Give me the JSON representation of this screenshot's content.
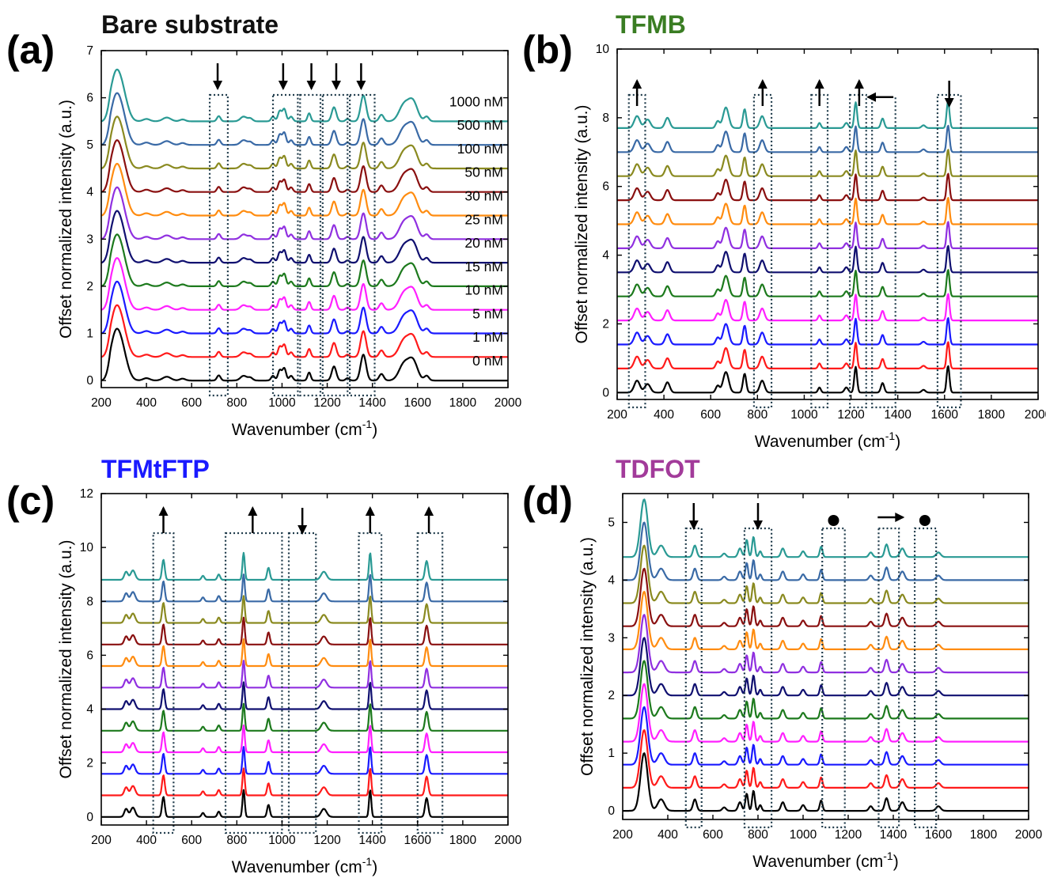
{
  "figure": {
    "labels": {
      "a": "(a)",
      "b": "(b)",
      "c": "(c)",
      "d": "(d)"
    },
    "titles": {
      "a": "Bare substrate",
      "b": "TFMB",
      "c": "TFMtFTP",
      "d": "TDFOT"
    },
    "title_colors": {
      "a": "#111111",
      "b": "#3a7d23",
      "c": "#1a1aff",
      "d": "#a23b9a"
    },
    "concentrations": [
      "1000 nM",
      "500 nM",
      "100 nM",
      "50 nM",
      "30 nM",
      "25 nM",
      "20 nM",
      "15 nM",
      "10 nM",
      "5 nM",
      "1 nM",
      "0 nM"
    ],
    "series_colors": [
      "#2a9a94",
      "#3a6aa6",
      "#8a8a20",
      "#8a1010",
      "#ff8c10",
      "#9030e0",
      "#101070",
      "#1d7a1d",
      "#ff20ff",
      "#1a1aff",
      "#ff1a1a",
      "#000000"
    ]
  },
  "chart_data": [
    {
      "panel": "a",
      "type": "line",
      "title": "Bare substrate",
      "xlabel": "Wavenumber (cm",
      "xlabel_sup": "-1",
      "xlabel_end": ")",
      "ylabel": "Offset normalized intensity (a.u.)",
      "xlim": [
        200,
        2000
      ],
      "ylim": [
        -0.15,
        7
      ],
      "xticks": [
        200,
        400,
        600,
        800,
        1000,
        1200,
        1400,
        1600,
        1800,
        2000
      ],
      "yticks": [
        0,
        1,
        2,
        3,
        4,
        5,
        6,
        7
      ],
      "legend": "in-plot concentration labels",
      "series_names": [
        "1000 nM",
        "500 nM",
        "100 nM",
        "50 nM",
        "30 nM",
        "25 nM",
        "20 nM",
        "15 nM",
        "10 nM",
        "5 nM",
        "1 nM",
        "0 nM"
      ],
      "offset_step": 0.5,
      "peaks": [
        [
          265,
          1.0,
          26
        ],
        [
          300,
          0.3,
          22
        ],
        [
          400,
          0.05,
          15
        ],
        [
          490,
          0.08,
          18
        ],
        [
          560,
          0.04,
          12
        ],
        [
          720,
          0.11,
          8
        ],
        [
          830,
          0.1,
          14
        ],
        [
          860,
          0.06,
          10
        ],
        [
          960,
          0.1,
          8
        ],
        [
          990,
          0.22,
          8
        ],
        [
          1010,
          0.26,
          8
        ],
        [
          1040,
          0.1,
          8
        ],
        [
          1120,
          0.17,
          7
        ],
        [
          1230,
          0.3,
          10
        ],
        [
          1290,
          0.05,
          8
        ],
        [
          1360,
          0.55,
          12
        ],
        [
          1440,
          0.14,
          10
        ],
        [
          1540,
          0.35,
          22
        ],
        [
          1580,
          0.4,
          20
        ],
        [
          1640,
          0.1,
          10
        ]
      ],
      "arrows": [
        "down",
        "down",
        "down",
        "down",
        "down"
      ],
      "boxes": [
        [
          680,
          760
        ],
        [
          960,
          1070
        ],
        [
          1080,
          1170
        ],
        [
          1180,
          1290
        ],
        [
          1300,
          1410
        ]
      ],
      "arrow_x": [
        715,
        1005,
        1130,
        1240,
        1350
      ]
    },
    {
      "panel": "b",
      "type": "line",
      "title": "TFMB",
      "xlabel": "Wavenumber (cm",
      "xlabel_sup": "-1",
      "xlabel_end": ")",
      "ylabel": "Offset normalized intensity (a.u.)",
      "xlim": [
        200,
        2000
      ],
      "ylim": [
        -0.2,
        10
      ],
      "xticks": [
        200,
        400,
        600,
        800,
        1000,
        1200,
        1400,
        1600,
        1800,
        2000
      ],
      "yticks": [
        0,
        2,
        4,
        6,
        8,
        10
      ],
      "offset_step": 0.7,
      "peaks": [
        [
          285,
          0.35,
          12
        ],
        [
          330,
          0.25,
          12
        ],
        [
          415,
          0.3,
          10
        ],
        [
          630,
          0.2,
          8
        ],
        [
          665,
          0.6,
          12
        ],
        [
          745,
          0.55,
          7
        ],
        [
          820,
          0.35,
          10
        ],
        [
          1065,
          0.15,
          6
        ],
        [
          1180,
          0.15,
          8
        ],
        [
          1220,
          0.75,
          6
        ],
        [
          1335,
          0.28,
          7
        ],
        [
          1510,
          0.08,
          8
        ],
        [
          1615,
          0.78,
          6
        ]
      ],
      "arrows": [
        "up",
        "up",
        "up",
        "up",
        "left",
        "down"
      ],
      "boxes": [
        [
          250,
          320
        ],
        [
          785,
          860
        ],
        [
          1030,
          1100
        ],
        [
          1195,
          1265
        ],
        [
          1290,
          1390
        ],
        [
          1570,
          1670
        ]
      ],
      "arrow_x": [
        285,
        822,
        1065,
        1235,
        1320,
        1620
      ]
    },
    {
      "panel": "c",
      "type": "line",
      "title": "TFMtFTP",
      "xlabel": "Wavenumber (cm",
      "xlabel_sup": "-1",
      "xlabel_end": ")",
      "ylabel": "Offset normalized intensity (a.u.)",
      "xlim": [
        200,
        2000
      ],
      "ylim": [
        -0.3,
        12
      ],
      "xticks": [
        200,
        400,
        600,
        800,
        1000,
        1200,
        1400,
        1600,
        1800,
        2000
      ],
      "yticks": [
        0,
        2,
        4,
        6,
        8,
        10,
        12
      ],
      "offset_step": 0.8,
      "peaks": [
        [
          310,
          0.3,
          8
        ],
        [
          340,
          0.35,
          10
        ],
        [
          475,
          0.75,
          6
        ],
        [
          650,
          0.15,
          6
        ],
        [
          720,
          0.2,
          6
        ],
        [
          830,
          1.0,
          5
        ],
        [
          940,
          0.45,
          6
        ],
        [
          1185,
          0.3,
          12
        ],
        [
          1390,
          1.0,
          5
        ],
        [
          1640,
          0.7,
          7
        ]
      ],
      "arrows": [
        "up",
        "up",
        "down",
        "up",
        "up"
      ],
      "boxes": [
        [
          430,
          520
        ],
        [
          750,
          1000
        ],
        [
          1030,
          1150
        ],
        [
          1340,
          1440
        ],
        [
          1600,
          1710
        ]
      ],
      "arrow_x": [
        475,
        870,
        1090,
        1390,
        1650
      ]
    },
    {
      "panel": "d",
      "type": "line",
      "title": "TDFOT",
      "xlabel": "Wavenumber (cm",
      "xlabel_sup": "-1",
      "xlabel_end": ")",
      "ylabel": "Offset normalized intensity (a.u.)",
      "xlim": [
        200,
        2000
      ],
      "ylim": [
        -0.15,
        5.5
      ],
      "xticks": [
        200,
        400,
        600,
        800,
        1000,
        1200,
        1400,
        1600,
        1800,
        2000
      ],
      "yticks": [
        0,
        1,
        2,
        3,
        4,
        5
      ],
      "offset_step": 0.4,
      "peaks": [
        [
          295,
          1.0,
          16
        ],
        [
          370,
          0.2,
          15
        ],
        [
          520,
          0.2,
          8
        ],
        [
          650,
          0.06,
          8
        ],
        [
          720,
          0.15,
          8
        ],
        [
          750,
          0.3,
          6
        ],
        [
          780,
          0.35,
          6
        ],
        [
          810,
          0.1,
          6
        ],
        [
          910,
          0.15,
          8
        ],
        [
          1000,
          0.1,
          8
        ],
        [
          1080,
          0.18,
          6
        ],
        [
          1300,
          0.08,
          8
        ],
        [
          1370,
          0.22,
          8
        ],
        [
          1440,
          0.15,
          10
        ],
        [
          1600,
          0.08,
          10
        ]
      ],
      "arrows": [
        "down",
        "down",
        "dot",
        "right",
        "dot"
      ],
      "boxes": [
        [
          480,
          550
        ],
        [
          740,
          860
        ],
        [
          1085,
          1185
        ],
        [
          1335,
          1425
        ],
        [
          1495,
          1590
        ]
      ],
      "arrow_x": [
        515,
        800,
        1135,
        1380,
        1540
      ]
    }
  ]
}
